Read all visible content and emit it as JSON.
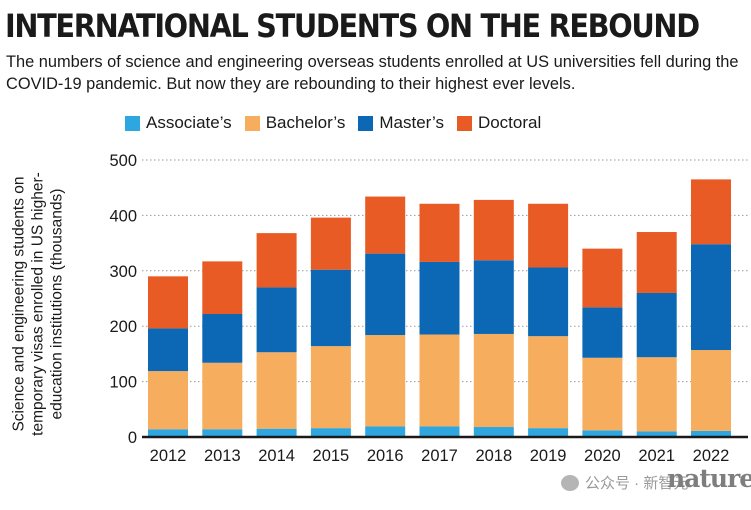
{
  "title": "INTERNATIONAL STUDENTS ON THE REBOUND",
  "subtitle": "The numbers of science and engineering overseas students enrolled at US universities fell during the COVID-19 pandemic. But now they are rebounding to their highest ever levels.",
  "watermark": {
    "text": "公众号 · 新智元",
    "logo": "nature"
  },
  "colors": {
    "associate": "#2ea6df",
    "bachelor": "#f6ae5e",
    "master": "#0c68b4",
    "doctoral": "#e85b24"
  },
  "chart_data": {
    "type": "bar",
    "stacked": true,
    "title": "INTERNATIONAL STUDENTS ON THE REBOUND",
    "xlabel": "",
    "ylabel": "Science and engineering students on temporary visas enrolled in US higher-education institutions (thousands)",
    "ylim": [
      0,
      500
    ],
    "yticks": [
      0,
      100,
      200,
      300,
      400,
      500
    ],
    "grid": true,
    "legend_position": "top",
    "categories": [
      "2012",
      "2013",
      "2014",
      "2015",
      "2016",
      "2017",
      "2018",
      "2019",
      "2020",
      "2021",
      "2022"
    ],
    "series": [
      {
        "name": "Associate’s",
        "key": "associate",
        "values": [
          14,
          14,
          15,
          16,
          19,
          19,
          18,
          16,
          12,
          10,
          11
        ]
      },
      {
        "name": "Bachelor’s",
        "key": "bachelor",
        "values": [
          105,
          120,
          138,
          148,
          165,
          166,
          168,
          166,
          131,
          134,
          146
        ]
      },
      {
        "name": "Master’s",
        "key": "master",
        "values": [
          77,
          88,
          117,
          138,
          147,
          131,
          133,
          124,
          91,
          116,
          191
        ]
      },
      {
        "name": "Doctoral",
        "key": "doctoral",
        "values": [
          94,
          95,
          98,
          94,
          103,
          105,
          109,
          115,
          106,
          110,
          117
        ]
      }
    ]
  }
}
